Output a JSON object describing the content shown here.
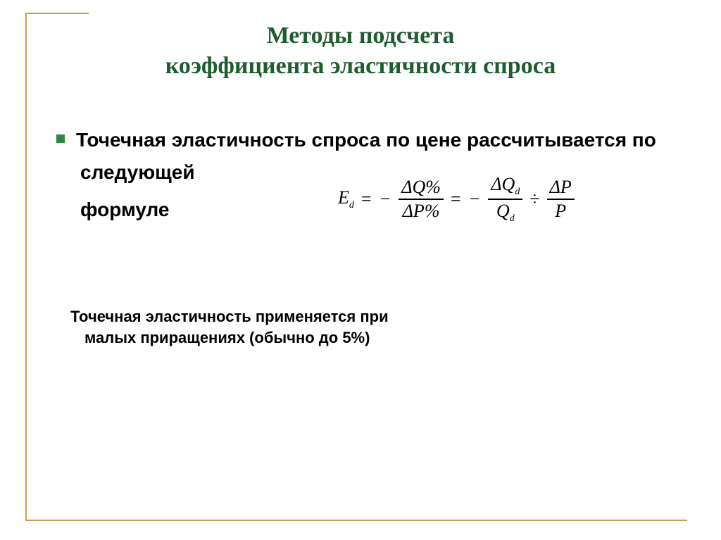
{
  "colors": {
    "title": "#1e5b2f",
    "bullet": "#2e8b3e",
    "frame": "#c0a050",
    "text": "#000000",
    "background": "#ffffff"
  },
  "typography": {
    "title_font": "Times New Roman",
    "title_size_pt": 26,
    "body_font": "Arial",
    "body_bold": true,
    "lead_size_pt": 21,
    "note_size_pt": 17,
    "formula_font": "Times New Roman"
  },
  "title": {
    "line1": "Методы подсчета",
    "line2": "коэффициента эластичности спроса"
  },
  "lead": {
    "part1": "Точечная эластичность спроса по цене рассчитывается по",
    "part2": "следующей",
    "part3": "формуле"
  },
  "note": {
    "line1": "Точечная эластичность применяется при",
    "line2": "малых приращениях (обычно до 5%)"
  },
  "formula": {
    "lhs_var": "E",
    "lhs_sub": "d",
    "eq": "=",
    "neg": "−",
    "div": "÷",
    "frac1_num": "ΔQ%",
    "frac1_den": "ΔP%",
    "frac2_num_a": "ΔQ",
    "frac2_num_sub": "d",
    "frac2_den_a": "Q",
    "frac2_den_sub": "d",
    "frac3_num": "ΔP",
    "frac3_den": "P"
  }
}
